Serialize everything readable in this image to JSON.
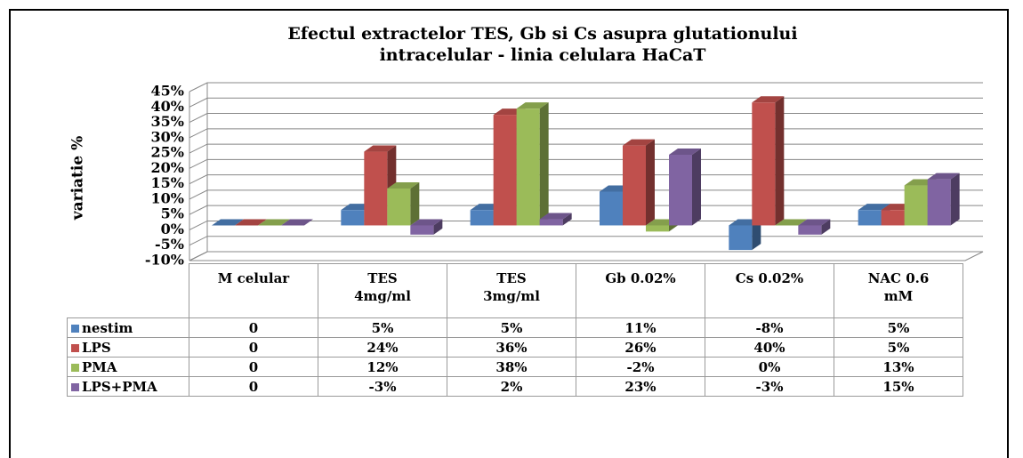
{
  "chart_data": {
    "type": "bar3d",
    "title": "Efectul extractelor TES, Gb si Cs asupra glutationului\nintracelular - linia celulara HaCaT",
    "y_label": "variatie %",
    "categories": [
      "M celular",
      "TES\n4mg/ml",
      "TES\n3mg/ml",
      "Gb 0.02%",
      "Cs 0.02%",
      "NAC 0.6\nmM"
    ],
    "series": [
      {
        "name": "nestim",
        "color": "#4f81bd",
        "values": [
          0,
          5,
          5,
          11,
          -8,
          5
        ],
        "value_labels": [
          "0",
          "5%",
          "5%",
          "11%",
          "-8%",
          "5%"
        ]
      },
      {
        "name": "LPS",
        "color": "#c0504d",
        "values": [
          0,
          24,
          36,
          26,
          40,
          5
        ],
        "value_labels": [
          "0",
          "24%",
          "36%",
          "26%",
          "40%",
          "5%"
        ]
      },
      {
        "name": "PMA",
        "color": "#9bbb59",
        "values": [
          0,
          12,
          38,
          -2,
          0,
          13
        ],
        "value_labels": [
          "0",
          "12%",
          "38%",
          "-2%",
          "0%",
          "13%"
        ]
      },
      {
        "name": "LPS+PMA",
        "color": "#8064a2",
        "values": [
          0,
          -3,
          2,
          23,
          -3,
          15
        ],
        "value_labels": [
          "0",
          "-3%",
          "2%",
          "23%",
          "-3%",
          "15%"
        ]
      }
    ],
    "ylim": [
      -10,
      45
    ],
    "yticks": [
      {
        "value": -10,
        "label": "-10%"
      },
      {
        "value": -5,
        "label": "-5%"
      },
      {
        "value": 0,
        "label": "0%"
      },
      {
        "value": 5,
        "label": "5%"
      },
      {
        "value": 10,
        "label": "10%"
      },
      {
        "value": 15,
        "label": "15%"
      },
      {
        "value": 20,
        "label": "20%"
      },
      {
        "value": 25,
        "label": "25%"
      },
      {
        "value": 30,
        "label": "30%"
      },
      {
        "value": 35,
        "label": "35%"
      },
      {
        "value": 40,
        "label": "40%"
      },
      {
        "value": 45,
        "label": "45%"
      }
    ],
    "grid": true
  }
}
